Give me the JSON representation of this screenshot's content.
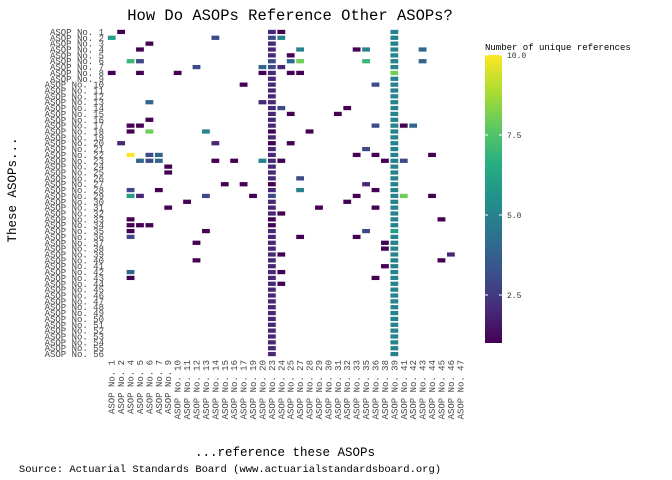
{
  "chart_data": {
    "type": "heatmap",
    "title": "How Do ASOPs Reference Other ASOPs?",
    "xlabel": "...reference these ASOPs",
    "ylabel": "These ASOPs...",
    "caption": "Source: Actuarial Standards Board (www.actuarialstandardsboard.org)",
    "legend_title": "Number of unique references",
    "legend_ticks": [
      "2.5",
      "5.0",
      "7.5",
      "10.0"
    ],
    "legend_tick_values": [
      2.5,
      5.0,
      7.5,
      10.0
    ],
    "value_range": [
      1,
      10
    ],
    "colorscale": "viridis",
    "legend_placement": "right",
    "grid": false,
    "x_categories": [
      "ASOP No. 1",
      "ASOP No. 2",
      "ASOP No. 4",
      "ASOP No. 5",
      "ASOP No. 6",
      "ASOP No. 7",
      "ASOP No. 9",
      "ASOP No. 10",
      "ASOP No. 11",
      "ASOP No. 12",
      "ASOP No. 13",
      "ASOP No. 14",
      "ASOP No. 15",
      "ASOP No. 16",
      "ASOP No. 17",
      "ASOP No. 19",
      "ASOP No. 20",
      "ASOP No. 23",
      "ASOP No. 24",
      "ASOP No. 25",
      "ASOP No. 27",
      "ASOP No. 28",
      "ASOP No. 29",
      "ASOP No. 30",
      "ASOP No. 31",
      "ASOP No. 32",
      "ASOP No. 33",
      "ASOP No. 35",
      "ASOP No. 36",
      "ASOP No. 38",
      "ASOP No. 39",
      "ASOP No. 41",
      "ASOP No. 42",
      "ASOP No. 43",
      "ASOP No. 44",
      "ASOP No. 45",
      "ASOP No. 46",
      "ASOP No. 47"
    ],
    "y_categories": [
      "ASOP No. 1",
      "ASOP No. 2",
      "ASOP No. 3",
      "ASOP No. 4",
      "ASOP No. 5",
      "ASOP No. 6",
      "ASOP No. 7",
      "ASOP No. 8",
      "ASOP No. 9",
      "ASOP No. 10",
      "ASOP No. 11",
      "ASOP No. 12",
      "ASOP No. 13",
      "ASOP No. 14",
      "ASOP No. 15",
      "ASOP No. 16",
      "ASOP No. 17",
      "ASOP No. 18",
      "ASOP No. 19",
      "ASOP No. 20",
      "ASOP No. 21",
      "ASOP No. 22",
      "ASOP No. 23",
      "ASOP No. 24",
      "ASOP No. 25",
      "ASOP No. 26",
      "ASOP No. 27",
      "ASOP No. 28",
      "ASOP No. 29",
      "ASOP No. 30",
      "ASOP No. 31",
      "ASOP No. 32",
      "ASOP No. 33",
      "ASOP No. 34",
      "ASOP No. 35",
      "ASOP No. 36",
      "ASOP No. 37",
      "ASOP No. 38",
      "ASOP No. 39",
      "ASOP No. 40",
      "ASOP No. 41",
      "ASOP No. 42",
      "ASOP No. 43",
      "ASOP No. 44",
      "ASOP No. 45",
      "ASOP No. 46",
      "ASOP No. 47",
      "ASOP No. 48",
      "ASOP No. 49",
      "ASOP No. 50",
      "ASOP No. 51",
      "ASOP No. 52",
      "ASOP No. 53",
      "ASOP No. 54",
      "ASOP No. 55",
      "ASOP No. 56"
    ],
    "cells": [
      [
        "ASOP No. 1",
        "ASOP No. 2",
        1
      ],
      [
        "ASOP No. 1",
        "ASOP No. 23",
        2
      ],
      [
        "ASOP No. 1",
        "ASOP No. 24",
        1
      ],
      [
        "ASOP No. 1",
        "ASOP No. 39",
        5
      ],
      [
        "ASOP No. 2",
        "ASOP No. 1",
        6
      ],
      [
        "ASOP No. 2",
        "ASOP No. 14",
        3
      ],
      [
        "ASOP No. 2",
        "ASOP No. 23",
        3
      ],
      [
        "ASOP No. 2",
        "ASOP No. 24",
        5
      ],
      [
        "ASOP No. 2",
        "ASOP No. 39",
        5
      ],
      [
        "ASOP No. 3",
        "ASOP No. 6",
        1
      ],
      [
        "ASOP No. 3",
        "ASOP No. 23",
        2
      ],
      [
        "ASOP No. 3",
        "ASOP No. 39",
        5
      ],
      [
        "ASOP No. 4",
        "ASOP No. 5",
        1
      ],
      [
        "ASOP No. 4",
        "ASOP No. 23",
        2
      ],
      [
        "ASOP No. 4",
        "ASOP No. 27",
        5
      ],
      [
        "ASOP No. 4",
        "ASOP No. 33",
        1
      ],
      [
        "ASOP No. 4",
        "ASOP No. 35",
        5
      ],
      [
        "ASOP No. 4",
        "ASOP No. 43",
        4
      ],
      [
        "ASOP No. 4",
        "ASOP No. 39",
        5
      ],
      [
        "ASOP No. 5",
        "ASOP No. 23",
        2
      ],
      [
        "ASOP No. 5",
        "ASOP No. 25",
        1
      ],
      [
        "ASOP No. 5",
        "ASOP No. 39",
        5
      ],
      [
        "ASOP No. 6",
        "ASOP No. 4",
        7
      ],
      [
        "ASOP No. 6",
        "ASOP No. 5",
        3
      ],
      [
        "ASOP No. 6",
        "ASOP No. 23",
        3
      ],
      [
        "ASOP No. 6",
        "ASOP No. 25",
        4
      ],
      [
        "ASOP No. 6",
        "ASOP No. 27",
        8
      ],
      [
        "ASOP No. 6",
        "ASOP No. 35",
        7
      ],
      [
        "ASOP No. 6",
        "ASOP No. 43",
        4
      ],
      [
        "ASOP No. 6",
        "ASOP No. 39",
        5
      ],
      [
        "ASOP No. 7",
        "ASOP No. 12",
        3
      ],
      [
        "ASOP No. 7",
        "ASOP No. 23",
        3
      ],
      [
        "ASOP No. 7",
        "ASOP No. 20",
        4
      ],
      [
        "ASOP No. 7",
        "ASOP No. 24",
        2
      ],
      [
        "ASOP No. 7",
        "ASOP No. 39",
        5
      ],
      [
        "ASOP No. 8",
        "ASOP No. 1",
        1
      ],
      [
        "ASOP No. 8",
        "ASOP No. 5",
        1
      ],
      [
        "ASOP No. 8",
        "ASOP No. 10",
        1
      ],
      [
        "ASOP No. 8",
        "ASOP No. 20",
        1
      ],
      [
        "ASOP No. 8",
        "ASOP No. 23",
        2
      ],
      [
        "ASOP No. 8",
        "ASOP No. 25",
        1
      ],
      [
        "ASOP No. 8",
        "ASOP No. 27",
        1
      ],
      [
        "ASOP No. 8",
        "ASOP No. 39",
        8
      ],
      [
        "ASOP No. 9",
        "ASOP No. 23",
        2
      ],
      [
        "ASOP No. 9",
        "ASOP No. 39",
        5
      ],
      [
        "ASOP No. 10",
        "ASOP No. 17",
        1
      ],
      [
        "ASOP No. 10",
        "ASOP No. 23",
        2
      ],
      [
        "ASOP No. 10",
        "ASOP No. 36",
        3
      ],
      [
        "ASOP No. 10",
        "ASOP No. 39",
        5
      ],
      [
        "ASOP No. 11",
        "ASOP No. 23",
        2
      ],
      [
        "ASOP No. 11",
        "ASOP No. 39",
        5
      ],
      [
        "ASOP No. 12",
        "ASOP No. 23",
        2
      ],
      [
        "ASOP No. 12",
        "ASOP No. 39",
        5
      ],
      [
        "ASOP No. 13",
        "ASOP No. 6",
        4
      ],
      [
        "ASOP No. 13",
        "ASOP No. 20",
        2
      ],
      [
        "ASOP No. 13",
        "ASOP No. 23",
        2
      ],
      [
        "ASOP No. 13",
        "ASOP No. 39",
        5
      ],
      [
        "ASOP No. 14",
        "ASOP No. 23",
        2
      ],
      [
        "ASOP No. 14",
        "ASOP No. 24",
        3
      ],
      [
        "ASOP No. 14",
        "ASOP No. 32",
        1
      ],
      [
        "ASOP No. 14",
        "ASOP No. 39",
        5
      ],
      [
        "ASOP No. 15",
        "ASOP No. 23",
        2
      ],
      [
        "ASOP No. 15",
        "ASOP No. 25",
        1
      ],
      [
        "ASOP No. 15",
        "ASOP No. 31",
        1
      ],
      [
        "ASOP No. 15",
        "ASOP No. 39",
        5
      ],
      [
        "ASOP No. 16",
        "ASOP No. 6",
        1
      ],
      [
        "ASOP No. 16",
        "ASOP No. 23",
        2
      ],
      [
        "ASOP No. 16",
        "ASOP No. 39",
        5
      ],
      [
        "ASOP No. 17",
        "ASOP No. 4",
        1
      ],
      [
        "ASOP No. 17",
        "ASOP No. 5",
        1
      ],
      [
        "ASOP No. 17",
        "ASOP No. 23",
        2
      ],
      [
        "ASOP No. 17",
        "ASOP No. 36",
        3
      ],
      [
        "ASOP No. 17",
        "ASOP No. 39",
        5
      ],
      [
        "ASOP No. 17",
        "ASOP No. 41",
        1
      ],
      [
        "ASOP No. 17",
        "ASOP No. 42",
        4
      ],
      [
        "ASOP No. 18",
        "ASOP No. 4",
        1
      ],
      [
        "ASOP No. 18",
        "ASOP No. 6",
        8
      ],
      [
        "ASOP No. 18",
        "ASOP No. 13",
        5
      ],
      [
        "ASOP No. 18",
        "ASOP No. 23",
        1
      ],
      [
        "ASOP No. 18",
        "ASOP No. 28",
        1
      ],
      [
        "ASOP No. 18",
        "ASOP No. 39",
        5
      ],
      [
        "ASOP No. 19",
        "ASOP No. 23",
        2
      ],
      [
        "ASOP No. 19",
        "ASOP No. 39",
        5
      ],
      [
        "ASOP No. 20",
        "ASOP No. 2",
        2
      ],
      [
        "ASOP No. 20",
        "ASOP No. 14",
        2
      ],
      [
        "ASOP No. 20",
        "ASOP No. 23",
        1
      ],
      [
        "ASOP No. 20",
        "ASOP No. 25",
        1
      ],
      [
        "ASOP No. 20",
        "ASOP No. 39",
        5
      ],
      [
        "ASOP No. 21",
        "ASOP No. 23",
        2
      ],
      [
        "ASOP No. 21",
        "ASOP No. 35",
        3
      ],
      [
        "ASOP No. 21",
        "ASOP No. 39",
        5
      ],
      [
        "ASOP No. 22",
        "ASOP No. 4",
        10
      ],
      [
        "ASOP No. 22",
        "ASOP No. 6",
        3
      ],
      [
        "ASOP No. 22",
        "ASOP No. 7",
        4
      ],
      [
        "ASOP No. 22",
        "ASOP No. 23",
        2
      ],
      [
        "ASOP No. 22",
        "ASOP No. 33",
        1
      ],
      [
        "ASOP No. 22",
        "ASOP No. 36",
        1
      ],
      [
        "ASOP No. 22",
        "ASOP No. 44",
        1
      ],
      [
        "ASOP No. 22",
        "ASOP No. 39",
        5
      ],
      [
        "ASOP No. 23",
        "ASOP No. 5",
        4
      ],
      [
        "ASOP No. 23",
        "ASOP No. 6",
        3
      ],
      [
        "ASOP No. 23",
        "ASOP No. 7",
        4
      ],
      [
        "ASOP No. 23",
        "ASOP No. 14",
        1
      ],
      [
        "ASOP No. 23",
        "ASOP No. 16",
        1
      ],
      [
        "ASOP No. 23",
        "ASOP No. 20",
        5
      ],
      [
        "ASOP No. 23",
        "ASOP No. 23",
        2
      ],
      [
        "ASOP No. 23",
        "ASOP No. 24",
        1
      ],
      [
        "ASOP No. 23",
        "ASOP No. 39",
        5
      ],
      [
        "ASOP No. 23",
        "ASOP No. 41",
        3
      ],
      [
        "ASOP No. 23",
        "ASOP No. 38",
        1
      ],
      [
        "ASOP No. 24",
        "ASOP No. 9",
        1
      ],
      [
        "ASOP No. 24",
        "ASOP No. 23",
        2
      ],
      [
        "ASOP No. 24",
        "ASOP No. 39",
        5
      ],
      [
        "ASOP No. 25",
        "ASOP No. 9",
        1
      ],
      [
        "ASOP No. 25",
        "ASOP No. 23",
        2
      ],
      [
        "ASOP No. 25",
        "ASOP No. 39",
        5
      ],
      [
        "ASOP No. 26",
        "ASOP No. 23",
        2
      ],
      [
        "ASOP No. 26",
        "ASOP No. 27",
        3
      ],
      [
        "ASOP No. 26",
        "ASOP No. 39",
        5
      ],
      [
        "ASOP No. 27",
        "ASOP No. 15",
        1
      ],
      [
        "ASOP No. 27",
        "ASOP No. 17",
        1
      ],
      [
        "ASOP No. 27",
        "ASOP No. 23",
        1
      ],
      [
        "ASOP No. 27",
        "ASOP No. 35",
        2
      ],
      [
        "ASOP No. 27",
        "ASOP No. 39",
        5
      ],
      [
        "ASOP No. 28",
        "ASOP No. 4",
        3
      ],
      [
        "ASOP No. 28",
        "ASOP No. 7",
        1
      ],
      [
        "ASOP No. 28",
        "ASOP No. 23",
        2
      ],
      [
        "ASOP No. 28",
        "ASOP No. 27",
        5
      ],
      [
        "ASOP No. 28",
        "ASOP No. 36",
        1
      ],
      [
        "ASOP No. 28",
        "ASOP No. 39",
        5
      ],
      [
        "ASOP No. 29",
        "ASOP No. 4",
        6
      ],
      [
        "ASOP No. 29",
        "ASOP No. 5",
        2
      ],
      [
        "ASOP No. 29",
        "ASOP No. 13",
        3
      ],
      [
        "ASOP No. 29",
        "ASOP No. 19",
        1
      ],
      [
        "ASOP No. 29",
        "ASOP No. 23",
        3
      ],
      [
        "ASOP No. 29",
        "ASOP No. 33",
        1
      ],
      [
        "ASOP No. 29",
        "ASOP No. 39",
        5
      ],
      [
        "ASOP No. 29",
        "ASOP No. 41",
        8
      ],
      [
        "ASOP No. 29",
        "ASOP No. 44",
        1
      ],
      [
        "ASOP No. 30",
        "ASOP No. 11",
        1
      ],
      [
        "ASOP No. 30",
        "ASOP No. 23",
        2
      ],
      [
        "ASOP No. 30",
        "ASOP No. 32",
        1
      ],
      [
        "ASOP No. 30",
        "ASOP No. 39",
        5
      ],
      [
        "ASOP No. 31",
        "ASOP No. 9",
        1
      ],
      [
        "ASOP No. 31",
        "ASOP No. 23",
        2
      ],
      [
        "ASOP No. 31",
        "ASOP No. 29",
        1
      ],
      [
        "ASOP No. 31",
        "ASOP No. 36",
        1
      ],
      [
        "ASOP No. 31",
        "ASOP No. 39",
        5
      ],
      [
        "ASOP No. 32",
        "ASOP No. 24",
        1
      ],
      [
        "ASOP No. 32",
        "ASOP No. 23",
        2
      ],
      [
        "ASOP No. 32",
        "ASOP No. 39",
        5
      ],
      [
        "ASOP No. 33",
        "ASOP No. 4",
        1
      ],
      [
        "ASOP No. 33",
        "ASOP No. 23",
        1
      ],
      [
        "ASOP No. 33",
        "ASOP No. 39",
        5
      ],
      [
        "ASOP No. 33",
        "ASOP No. 45",
        1
      ],
      [
        "ASOP No. 34",
        "ASOP No. 4",
        1
      ],
      [
        "ASOP No. 34",
        "ASOP No. 5",
        1
      ],
      [
        "ASOP No. 34",
        "ASOP No. 6",
        1
      ],
      [
        "ASOP No. 34",
        "ASOP No. 23",
        1
      ],
      [
        "ASOP No. 34",
        "ASOP No. 39",
        5
      ],
      [
        "ASOP No. 35",
        "ASOP No. 4",
        1
      ],
      [
        "ASOP No. 35",
        "ASOP No. 13",
        1
      ],
      [
        "ASOP No. 35",
        "ASOP No. 23",
        2
      ],
      [
        "ASOP No. 35",
        "ASOP No. 35",
        3
      ],
      [
        "ASOP No. 35",
        "ASOP No. 39",
        6
      ],
      [
        "ASOP No. 36",
        "ASOP No. 4",
        3
      ],
      [
        "ASOP No. 36",
        "ASOP No. 23",
        2
      ],
      [
        "ASOP No. 36",
        "ASOP No. 27",
        1
      ],
      [
        "ASOP No. 36",
        "ASOP No. 33",
        1
      ],
      [
        "ASOP No. 36",
        "ASOP No. 39",
        5
      ],
      [
        "ASOP No. 37",
        "ASOP No. 12",
        1
      ],
      [
        "ASOP No. 37",
        "ASOP No. 23",
        2
      ],
      [
        "ASOP No. 37",
        "ASOP No. 38",
        1
      ],
      [
        "ASOP No. 37",
        "ASOP No. 39",
        5
      ],
      [
        "ASOP No. 38",
        "ASOP No. 23",
        2
      ],
      [
        "ASOP No. 38",
        "ASOP No. 38",
        1
      ],
      [
        "ASOP No. 38",
        "ASOP No. 39",
        5
      ],
      [
        "ASOP No. 39",
        "ASOP No. 23",
        2
      ],
      [
        "ASOP No. 39",
        "ASOP No. 24",
        1
      ],
      [
        "ASOP No. 39",
        "ASOP No. 39",
        5
      ],
      [
        "ASOP No. 39",
        "ASOP No. 46",
        2
      ],
      [
        "ASOP No. 40",
        "ASOP No. 12",
        1
      ],
      [
        "ASOP No. 40",
        "ASOP No. 23",
        2
      ],
      [
        "ASOP No. 40",
        "ASOP No. 39",
        5
      ],
      [
        "ASOP No. 40",
        "ASOP No. 45",
        1
      ],
      [
        "ASOP No. 41",
        "ASOP No. 23",
        2
      ],
      [
        "ASOP No. 41",
        "ASOP No. 38",
        1
      ],
      [
        "ASOP No. 41",
        "ASOP No. 39",
        5
      ],
      [
        "ASOP No. 42",
        "ASOP No. 4",
        4
      ],
      [
        "ASOP No. 42",
        "ASOP No. 23",
        2
      ],
      [
        "ASOP No. 42",
        "ASOP No. 24",
        1
      ],
      [
        "ASOP No. 42",
        "ASOP No. 39",
        5
      ],
      [
        "ASOP No. 43",
        "ASOP No. 4",
        1
      ],
      [
        "ASOP No. 43",
        "ASOP No. 23",
        2
      ],
      [
        "ASOP No. 43",
        "ASOP No. 36",
        1
      ],
      [
        "ASOP No. 43",
        "ASOP No. 39",
        5
      ],
      [
        "ASOP No. 44",
        "ASOP No. 23",
        2
      ],
      [
        "ASOP No. 44",
        "ASOP No. 24",
        1
      ],
      [
        "ASOP No. 44",
        "ASOP No. 39",
        5
      ],
      [
        "ASOP No. 45",
        "ASOP No. 23",
        2
      ],
      [
        "ASOP No. 45",
        "ASOP No. 39",
        5
      ],
      [
        "ASOP No. 46",
        "ASOP No. 23",
        2
      ],
      [
        "ASOP No. 46",
        "ASOP No. 39",
        5
      ],
      [
        "ASOP No. 47",
        "ASOP No. 23",
        2
      ],
      [
        "ASOP No. 47",
        "ASOP No. 39",
        5
      ],
      [
        "ASOP No. 48",
        "ASOP No. 23",
        2
      ],
      [
        "ASOP No. 48",
        "ASOP No. 39",
        5
      ],
      [
        "ASOP No. 49",
        "ASOP No. 23",
        2
      ],
      [
        "ASOP No. 49",
        "ASOP No. 39",
        5
      ],
      [
        "ASOP No. 50",
        "ASOP No. 23",
        2
      ],
      [
        "ASOP No. 50",
        "ASOP No. 39",
        5
      ],
      [
        "ASOP No. 51",
        "ASOP No. 23",
        2
      ],
      [
        "ASOP No. 51",
        "ASOP No. 39",
        5
      ],
      [
        "ASOP No. 52",
        "ASOP No. 23",
        2
      ],
      [
        "ASOP No. 52",
        "ASOP No. 39",
        5
      ],
      [
        "ASOP No. 53",
        "ASOP No. 23",
        2
      ],
      [
        "ASOP No. 53",
        "ASOP No. 39",
        5
      ],
      [
        "ASOP No. 54",
        "ASOP No. 23",
        2
      ],
      [
        "ASOP No. 54",
        "ASOP No. 39",
        5
      ],
      [
        "ASOP No. 55",
        "ASOP No. 23",
        2
      ],
      [
        "ASOP No. 55",
        "ASOP No. 39",
        5
      ],
      [
        "ASOP No. 56",
        "ASOP No. 23",
        2
      ],
      [
        "ASOP No. 56",
        "ASOP No. 39",
        5
      ]
    ]
  }
}
